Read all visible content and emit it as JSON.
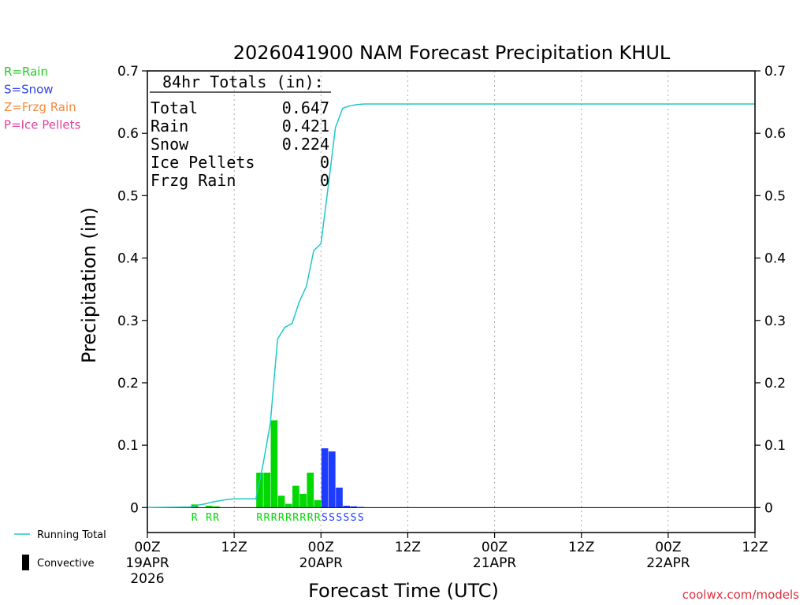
{
  "chart_data": {
    "type": "bar",
    "title": "2026041900 NAM Forecast Precipitation KHUL",
    "xlabel": "Forecast Time (UTC)",
    "ylabel": "Precipitation (in)",
    "ylim": [
      -0.04,
      0.7
    ],
    "y_ticks": [
      0,
      0.1,
      0.2,
      0.3,
      0.4,
      0.5,
      0.6,
      0.7
    ],
    "xlim_hours": [
      0,
      84
    ],
    "x_ticks": [
      {
        "hour": 0,
        "label": "00Z",
        "sub1": "19APR",
        "sub2": "2026"
      },
      {
        "hour": 12,
        "label": "12Z",
        "sub1": "",
        "sub2": ""
      },
      {
        "hour": 24,
        "label": "00Z",
        "sub1": "20APR",
        "sub2": ""
      },
      {
        "hour": 36,
        "label": "12Z",
        "sub1": "",
        "sub2": ""
      },
      {
        "hour": 48,
        "label": "00Z",
        "sub1": "21APR",
        "sub2": ""
      },
      {
        "hour": 60,
        "label": "12Z",
        "sub1": "",
        "sub2": ""
      },
      {
        "hour": 72,
        "label": "00Z",
        "sub1": "22APR",
        "sub2": ""
      },
      {
        "hour": 84,
        "label": "12Z",
        "sub1": "",
        "sub2": ""
      }
    ],
    "grid_hours": [
      12,
      24,
      36,
      48,
      60,
      72
    ],
    "bars": [
      {
        "hour": 7,
        "value": 0.005,
        "type": "R"
      },
      {
        "hour": 9,
        "value": 0.003,
        "type": "R"
      },
      {
        "hour": 10,
        "value": 0.002,
        "type": "R"
      },
      {
        "hour": 16,
        "value": 0.056,
        "type": "R"
      },
      {
        "hour": 17,
        "value": 0.056,
        "type": "R"
      },
      {
        "hour": 18,
        "value": 0.14,
        "type": "R"
      },
      {
        "hour": 19,
        "value": 0.019,
        "type": "R"
      },
      {
        "hour": 20,
        "value": 0.006,
        "type": "R"
      },
      {
        "hour": 21,
        "value": 0.035,
        "type": "R"
      },
      {
        "hour": 22,
        "value": 0.022,
        "type": "R"
      },
      {
        "hour": 23,
        "value": 0.056,
        "type": "R"
      },
      {
        "hour": 24,
        "value": 0.012,
        "type": "R"
      },
      {
        "hour": 25,
        "value": 0.095,
        "type": "S"
      },
      {
        "hour": 26,
        "value": 0.09,
        "type": "S"
      },
      {
        "hour": 27,
        "value": 0.032,
        "type": "S"
      },
      {
        "hour": 28,
        "value": 0.003,
        "type": "S"
      },
      {
        "hour": 29,
        "value": 0.002,
        "type": "S"
      },
      {
        "hour": 30,
        "value": 0.001,
        "type": "S"
      }
    ],
    "running_total": {
      "hours": [
        0,
        6,
        7,
        8,
        9,
        10,
        11,
        12,
        13,
        14,
        15,
        16,
        17,
        18,
        19,
        20,
        21,
        22,
        23,
        24,
        25,
        26,
        27,
        28,
        29,
        30,
        31,
        32,
        33,
        84
      ],
      "values": [
        0,
        0.001,
        0.004,
        0.006,
        0.009,
        0.011,
        0.013,
        0.014,
        0.014,
        0.014,
        0.014,
        0.07,
        0.135,
        0.27,
        0.289,
        0.295,
        0.33,
        0.355,
        0.412,
        0.423,
        0.515,
        0.609,
        0.64,
        0.644,
        0.646,
        0.647,
        0.647,
        0.647,
        0.647,
        0.647
      ]
    },
    "letters": [
      {
        "hour": 7,
        "char": "R",
        "type": "R"
      },
      {
        "hour": 9,
        "char": "R",
        "type": "R"
      },
      {
        "hour": 10,
        "char": "R",
        "type": "R"
      },
      {
        "hour": 16,
        "char": "R",
        "type": "R"
      },
      {
        "hour": 17,
        "char": "R",
        "type": "R"
      },
      {
        "hour": 18,
        "char": "R",
        "type": "R"
      },
      {
        "hour": 19,
        "char": "R",
        "type": "R"
      },
      {
        "hour": 20,
        "char": "R",
        "type": "R"
      },
      {
        "hour": 21,
        "char": "R",
        "type": "R"
      },
      {
        "hour": 22,
        "char": "R",
        "type": "R"
      },
      {
        "hour": 23,
        "char": "R",
        "type": "R"
      },
      {
        "hour": 24,
        "char": "R",
        "type": "R"
      },
      {
        "hour": 25,
        "char": "S",
        "type": "S"
      },
      {
        "hour": 26,
        "char": "S",
        "type": "S"
      },
      {
        "hour": 27,
        "char": "S",
        "type": "S"
      },
      {
        "hour": 28,
        "char": "S",
        "type": "S"
      },
      {
        "hour": 29,
        "char": "S",
        "type": "S"
      },
      {
        "hour": 30,
        "char": "S",
        "type": "S"
      }
    ],
    "totals_box": {
      "heading": "84hr Totals (in):",
      "rows": [
        {
          "label": "Total",
          "value": "0.647"
        },
        {
          "label": "Rain",
          "value": "0.421"
        },
        {
          "label": "Snow",
          "value": "0.224"
        },
        {
          "label": "Ice Pellets",
          "value": "0"
        },
        {
          "label": "Frzg Rain",
          "value": "0"
        }
      ]
    },
    "type_legend": [
      {
        "text": "R=Rain",
        "color": "#22cc22"
      },
      {
        "text": "S=Snow",
        "color": "#3344ee"
      },
      {
        "text": "Z=Frzg Rain",
        "color": "#f08a3c"
      },
      {
        "text": "P=Ice Pellets",
        "color": "#e040a0"
      }
    ],
    "bottom_legend": [
      {
        "text": "Running Total",
        "kind": "line",
        "color": "#20c8c8"
      },
      {
        "text": "Convective",
        "kind": "bar",
        "color": "#000000"
      }
    ],
    "colors": {
      "R": "#00d800",
      "S": "#1e3cff",
      "running_total": "#20c8c8",
      "axis": "#000000",
      "grid": "#aaaaaa"
    },
    "credit": "coolwx.com/models"
  }
}
